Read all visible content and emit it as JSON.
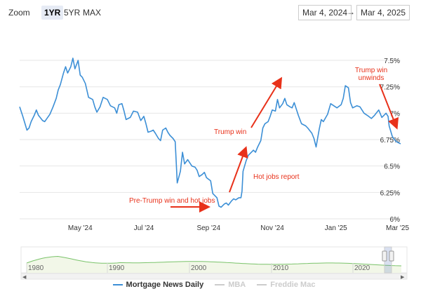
{
  "toolbar": {
    "zoom_label": "Zoom",
    "buttons": [
      "1YR",
      "5YR",
      "MAX"
    ],
    "active_button": "1YR",
    "date_from": "Mar 4, 2024",
    "date_arrow": "→",
    "date_to": "Mar 4, 2025"
  },
  "chart_data": {
    "type": "line",
    "title": "",
    "xlabel": "",
    "ylabel": "",
    "x_ticks": [
      "May '24",
      "Jul '24",
      "Sep '24",
      "Nov '24",
      "Jan '25",
      "Mar '25"
    ],
    "y_ticks": [
      "6%",
      "6.25%",
      "6.5%",
      "6.75%",
      "7%",
      "7.25%",
      "7.5%"
    ],
    "ylim": [
      6.0,
      7.58
    ],
    "xlim": [
      "2024-03-04",
      "2025-03-04"
    ],
    "grid": "horizontal",
    "series": [
      {
        "name": "Mortgage News Daily",
        "color": "#3c8fd6",
        "points": [
          [
            "2024-03-04",
            7.06
          ],
          [
            "2024-03-07",
            6.97
          ],
          [
            "2024-03-11",
            6.84
          ],
          [
            "2024-03-13",
            6.86
          ],
          [
            "2024-03-15",
            6.92
          ],
          [
            "2024-03-18",
            6.98
          ],
          [
            "2024-03-20",
            7.03
          ],
          [
            "2024-03-22",
            6.98
          ],
          [
            "2024-03-26",
            6.93
          ],
          [
            "2024-03-28",
            6.92
          ],
          [
            "2024-04-02",
            6.99
          ],
          [
            "2024-04-05",
            7.06
          ],
          [
            "2024-04-08",
            7.14
          ],
          [
            "2024-04-10",
            7.22
          ],
          [
            "2024-04-12",
            7.27
          ],
          [
            "2024-04-15",
            7.38
          ],
          [
            "2024-04-17",
            7.44
          ],
          [
            "2024-04-19",
            7.38
          ],
          [
            "2024-04-22",
            7.44
          ],
          [
            "2024-04-24",
            7.52
          ],
          [
            "2024-04-26",
            7.42
          ],
          [
            "2024-04-29",
            7.5
          ],
          [
            "2024-05-01",
            7.36
          ],
          [
            "2024-05-03",
            7.34
          ],
          [
            "2024-05-06",
            7.28
          ],
          [
            "2024-05-09",
            7.15
          ],
          [
            "2024-05-13",
            7.13
          ],
          [
            "2024-05-15",
            7.06
          ],
          [
            "2024-05-17",
            7.01
          ],
          [
            "2024-05-20",
            7.06
          ],
          [
            "2024-05-23",
            7.15
          ],
          [
            "2024-05-27",
            7.13
          ],
          [
            "2024-05-30",
            7.07
          ],
          [
            "2024-06-03",
            7.05
          ],
          [
            "2024-06-05",
            7.0
          ],
          [
            "2024-06-07",
            7.08
          ],
          [
            "2024-06-10",
            7.09
          ],
          [
            "2024-06-12",
            7.02
          ],
          [
            "2024-06-14",
            6.94
          ],
          [
            "2024-06-18",
            6.96
          ],
          [
            "2024-06-21",
            7.02
          ],
          [
            "2024-06-25",
            7.01
          ],
          [
            "2024-06-28",
            6.93
          ],
          [
            "2024-07-01",
            6.97
          ],
          [
            "2024-07-03",
            6.9
          ],
          [
            "2024-07-05",
            6.82
          ],
          [
            "2024-07-08",
            6.83
          ],
          [
            "2024-07-10",
            6.84
          ],
          [
            "2024-07-12",
            6.81
          ],
          [
            "2024-07-15",
            6.76
          ],
          [
            "2024-07-17",
            6.74
          ],
          [
            "2024-07-19",
            6.84
          ],
          [
            "2024-07-22",
            6.86
          ],
          [
            "2024-07-24",
            6.82
          ],
          [
            "2024-07-26",
            6.79
          ],
          [
            "2024-07-29",
            6.76
          ],
          [
            "2024-07-31",
            6.73
          ],
          [
            "2024-08-01",
            6.53
          ],
          [
            "2024-08-02",
            6.34
          ],
          [
            "2024-08-05",
            6.45
          ],
          [
            "2024-08-07",
            6.63
          ],
          [
            "2024-08-09",
            6.52
          ],
          [
            "2024-08-12",
            6.56
          ],
          [
            "2024-08-14",
            6.53
          ],
          [
            "2024-08-16",
            6.5
          ],
          [
            "2024-08-19",
            6.49
          ],
          [
            "2024-08-21",
            6.46
          ],
          [
            "2024-08-23",
            6.4
          ],
          [
            "2024-08-26",
            6.42
          ],
          [
            "2024-08-28",
            6.44
          ],
          [
            "2024-08-30",
            6.39
          ],
          [
            "2024-09-03",
            6.36
          ],
          [
            "2024-09-05",
            6.24
          ],
          [
            "2024-09-09",
            6.2
          ],
          [
            "2024-09-11",
            6.12
          ],
          [
            "2024-09-13",
            6.11
          ],
          [
            "2024-09-16",
            6.14
          ],
          [
            "2024-09-18",
            6.15
          ],
          [
            "2024-09-20",
            6.13
          ],
          [
            "2024-09-23",
            6.17
          ],
          [
            "2024-09-25",
            6.19
          ],
          [
            "2024-09-27",
            6.18
          ],
          [
            "2024-09-30",
            6.2
          ],
          [
            "2024-10-02",
            6.2
          ],
          [
            "2024-10-03",
            6.26
          ],
          [
            "2024-10-04",
            6.45
          ],
          [
            "2024-10-07",
            6.55
          ],
          [
            "2024-10-09",
            6.6
          ],
          [
            "2024-10-11",
            6.62
          ],
          [
            "2024-10-14",
            6.65
          ],
          [
            "2024-10-16",
            6.63
          ],
          [
            "2024-10-18",
            6.68
          ],
          [
            "2024-10-21",
            6.74
          ],
          [
            "2024-10-23",
            6.86
          ],
          [
            "2024-10-25",
            6.9
          ],
          [
            "2024-10-28",
            6.92
          ],
          [
            "2024-10-30",
            6.97
          ],
          [
            "2024-11-01",
            7.03
          ],
          [
            "2024-11-04",
            7.02
          ],
          [
            "2024-11-06",
            7.13
          ],
          [
            "2024-11-08",
            7.05
          ],
          [
            "2024-11-11",
            7.09
          ],
          [
            "2024-11-13",
            7.14
          ],
          [
            "2024-11-15",
            7.08
          ],
          [
            "2024-11-18",
            7.06
          ],
          [
            "2024-11-20",
            7.05
          ],
          [
            "2024-11-22",
            7.1
          ],
          [
            "2024-11-26",
            6.98
          ],
          [
            "2024-11-29",
            6.9
          ],
          [
            "2024-12-03",
            6.88
          ],
          [
            "2024-12-05",
            6.86
          ],
          [
            "2024-12-09",
            6.81
          ],
          [
            "2024-12-11",
            6.76
          ],
          [
            "2024-12-13",
            6.68
          ],
          [
            "2024-12-16",
            6.85
          ],
          [
            "2024-12-18",
            6.94
          ],
          [
            "2024-12-20",
            6.92
          ],
          [
            "2024-12-24",
            6.99
          ],
          [
            "2024-12-27",
            7.09
          ],
          [
            "2024-12-30",
            7.07
          ],
          [
            "2025-01-02",
            7.05
          ],
          [
            "2025-01-06",
            7.08
          ],
          [
            "2025-01-08",
            7.14
          ],
          [
            "2025-01-10",
            7.26
          ],
          [
            "2025-01-13",
            7.24
          ],
          [
            "2025-01-15",
            7.1
          ],
          [
            "2025-01-17",
            7.05
          ],
          [
            "2025-01-21",
            7.07
          ],
          [
            "2025-01-24",
            7.06
          ],
          [
            "2025-01-28",
            7.0
          ],
          [
            "2025-01-31",
            6.98
          ],
          [
            "2025-02-04",
            6.95
          ],
          [
            "2025-02-07",
            6.98
          ],
          [
            "2025-02-11",
            7.03
          ],
          [
            "2025-02-14",
            6.96
          ],
          [
            "2025-02-18",
            7.0
          ],
          [
            "2025-02-20",
            6.97
          ],
          [
            "2025-02-21",
            6.88
          ],
          [
            "2025-02-24",
            6.78
          ],
          [
            "2025-02-26",
            6.75
          ],
          [
            "2025-02-28",
            6.73
          ],
          [
            "2025-03-04",
            6.71
          ]
        ]
      }
    ],
    "annotations": [
      {
        "text": "Pre-Trump win and hot jobs",
        "color": "#e8311a"
      },
      {
        "text": "Trump win",
        "color": "#e8311a"
      },
      {
        "text": "Hot jobs report",
        "color": "#e8311a"
      },
      {
        "text": [
          "Trump win",
          "unwinds"
        ],
        "color": "#e8311a"
      }
    ]
  },
  "navigator": {
    "x_ticks": [
      "1980",
      "1990",
      "2000",
      "2010",
      "2020"
    ],
    "line_color": "#7ac36a",
    "fill_color": "#f2f7e8"
  },
  "legend": [
    {
      "label": "Mortgage News Daily",
      "color": "#3c8fd6",
      "enabled": true
    },
    {
      "label": "MBA",
      "color": "#cccccc",
      "enabled": false
    },
    {
      "label": "Freddie Mac",
      "color": "#cccccc",
      "enabled": false
    }
  ]
}
